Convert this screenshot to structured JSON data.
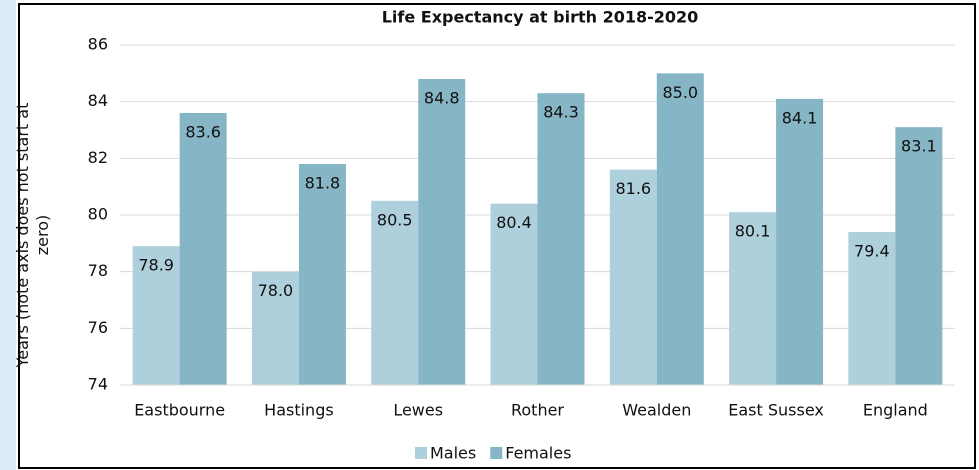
{
  "chart_data": {
    "type": "bar",
    "title": "Life Expectancy at birth 2018-2020",
    "y_label": "Years (note axis does not start at zero)",
    "categories": [
      "Eastbourne",
      "Hastings",
      "Lewes",
      "Rother",
      "Wealden",
      "East Sussex",
      "England"
    ],
    "series": [
      {
        "name": "Males",
        "color": "#aecfdc",
        "values": [
          78.9,
          78.0,
          80.5,
          80.4,
          81.6,
          80.1,
          79.4
        ],
        "value_labels": [
          "78.9",
          "78.0",
          "80.5",
          "80.4",
          "81.6",
          "80.1",
          "79.4"
        ]
      },
      {
        "name": "Females",
        "color": "#86b6c6",
        "values": [
          83.6,
          81.8,
          84.8,
          84.3,
          85.0,
          84.1,
          83.1
        ],
        "value_labels": [
          "83.6",
          "81.8",
          "84.8",
          "84.3",
          "85.0",
          "84.1",
          "83.1"
        ]
      }
    ],
    "ylim": [
      74,
      86
    ],
    "yticks": [
      74,
      76,
      78,
      80,
      82,
      84,
      86
    ],
    "grid": true,
    "legend": "bottom"
  }
}
